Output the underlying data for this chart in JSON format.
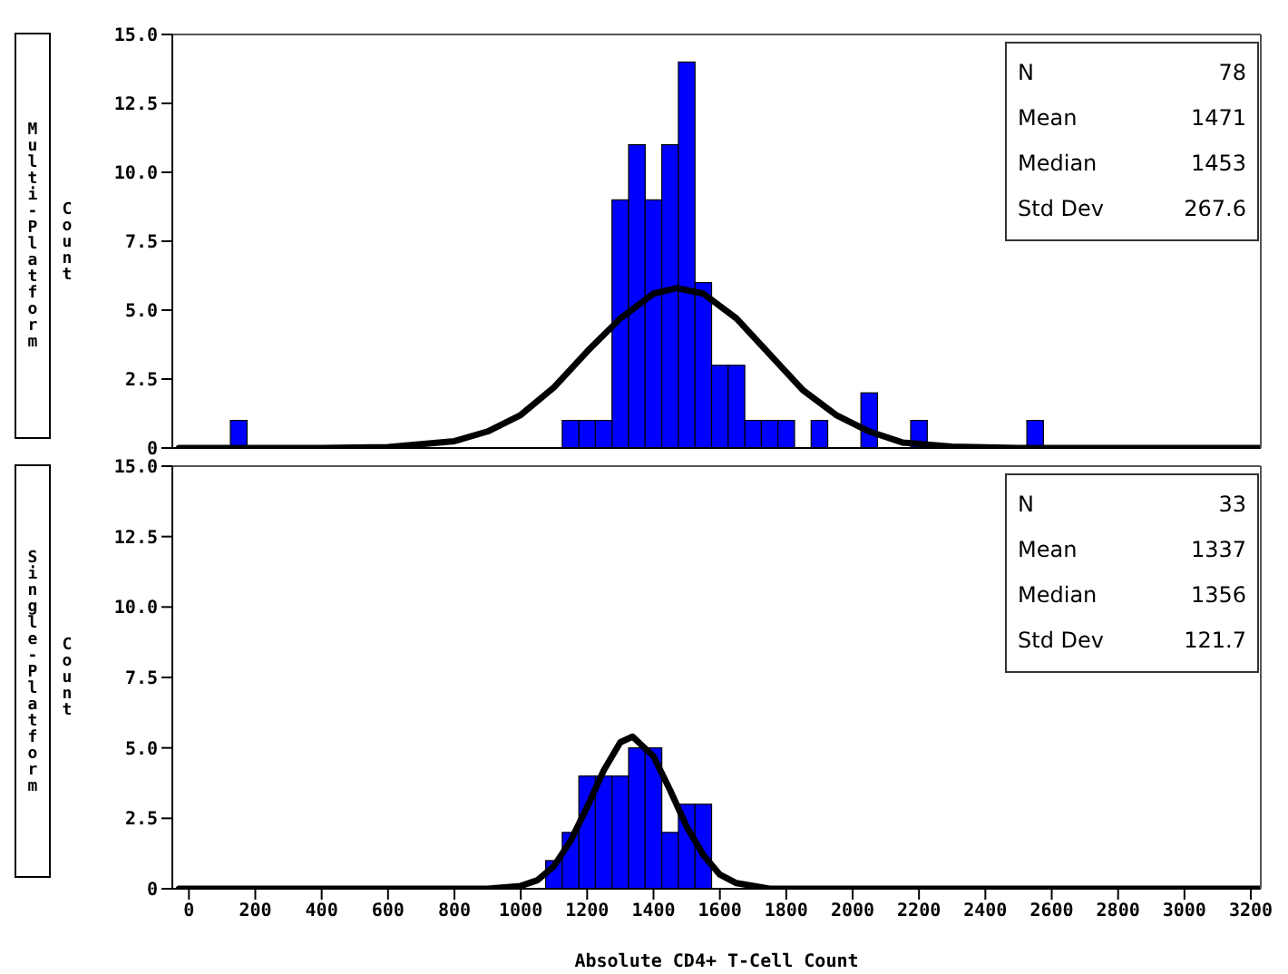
{
  "chart_data": [
    {
      "type": "histogram",
      "title": "Multi-Platform",
      "ylabel": "Count",
      "tick_labels": "y",
      "xlim": [
        -50,
        3230
      ],
      "ylim": [
        0,
        15
      ],
      "yticks": [
        0,
        2.5,
        {
          "value": 5,
          "label": "5.0"
        },
        7.5,
        {
          "value": 10,
          "label": "10.0"
        },
        12.5,
        {
          "value": 15,
          "label": "15.0"
        }
      ],
      "annotations": [
        "N",
        "78",
        "Mean",
        "1471",
        "Median",
        "1453",
        "Std Dev",
        "267.6"
      ],
      "series": [
        {
          "color": "#0000ff",
          "bins": [
            125,
            175,
            225,
            275,
            325,
            375,
            425,
            475,
            525,
            575,
            625,
            675,
            725,
            775,
            825,
            875,
            925,
            975,
            1025,
            1075,
            1125,
            1175,
            1225,
            1275,
            1325,
            1375,
            1425,
            1475,
            1525,
            1575,
            1625,
            1675,
            1725,
            1775,
            1825,
            1875,
            1925,
            1975,
            2025,
            2075,
            2125,
            2175,
            2225,
            2275,
            2325,
            2375,
            2425,
            2475,
            2525,
            2575
          ],
          "values": [
            1,
            0,
            0,
            0,
            0,
            0,
            0,
            0,
            0,
            0,
            0,
            0,
            0,
            0,
            0,
            0,
            0,
            0,
            0,
            0,
            1,
            1,
            1,
            9,
            11,
            9,
            11,
            14,
            6,
            3,
            3,
            1,
            1,
            1,
            0,
            1,
            0,
            0,
            2,
            0,
            0,
            1,
            0,
            0,
            0,
            0,
            0,
            0,
            1
          ]
        },
        {
          "type": "line",
          "color": "#000000",
          "x": [
            -30,
            400,
            600,
            800,
            900,
            1000,
            1100,
            1200,
            1300,
            1400,
            1471,
            1550,
            1650,
            1750,
            1850,
            1950,
            2050,
            2150,
            2300,
            2500,
            3230
          ],
          "values": [
            0,
            0,
            0.03,
            0.25,
            0.6,
            1.2,
            2.2,
            3.5,
            4.7,
            5.6,
            5.8,
            5.6,
            4.7,
            3.4,
            2.1,
            1.2,
            0.6,
            0.2,
            0.05,
            0,
            0
          ]
        }
      ]
    },
    {
      "type": "histogram",
      "title": "Single-Platform",
      "ylabel": "Count",
      "xlabel": "Absolute CD4+ T-Cell Count",
      "xlim": [
        -50,
        3230
      ],
      "xticks": [
        0,
        200,
        400,
        600,
        800,
        1000,
        1200,
        1400,
        1600,
        1800,
        2000,
        2200,
        2400,
        2600,
        2800,
        3000,
        3200
      ],
      "ylim": [
        0,
        15
      ],
      "yticks": [
        0,
        2.5,
        {
          "value": 5,
          "label": "5.0"
        },
        7.5,
        {
          "value": 10,
          "label": "10.0"
        },
        12.5,
        {
          "value": 15,
          "label": "15.0"
        }
      ],
      "annotations": [
        "N",
        "33",
        "Mean",
        "1337",
        "Median",
        "1356",
        "Std Dev",
        "121.7"
      ],
      "series": [
        {
          "color": "#0000ff",
          "bins": [
            1075,
            1125,
            1175,
            1225,
            1275,
            1325,
            1375,
            1425,
            1475,
            1525,
            1575
          ],
          "values": [
            1,
            2,
            4,
            4,
            4,
            5,
            5,
            2,
            3,
            3
          ]
        },
        {
          "type": "line",
          "color": "#000000",
          "x": [
            -30,
            800,
            900,
            1000,
            1050,
            1100,
            1150,
            1200,
            1250,
            1300,
            1337,
            1400,
            1450,
            1500,
            1550,
            1600,
            1650,
            1750,
            3230
          ],
          "values": [
            0,
            0,
            0,
            0.1,
            0.3,
            0.8,
            1.7,
            2.9,
            4.2,
            5.2,
            5.4,
            4.7,
            3.5,
            2.2,
            1.2,
            0.5,
            0.2,
            0,
            0
          ]
        }
      ]
    }
  ]
}
